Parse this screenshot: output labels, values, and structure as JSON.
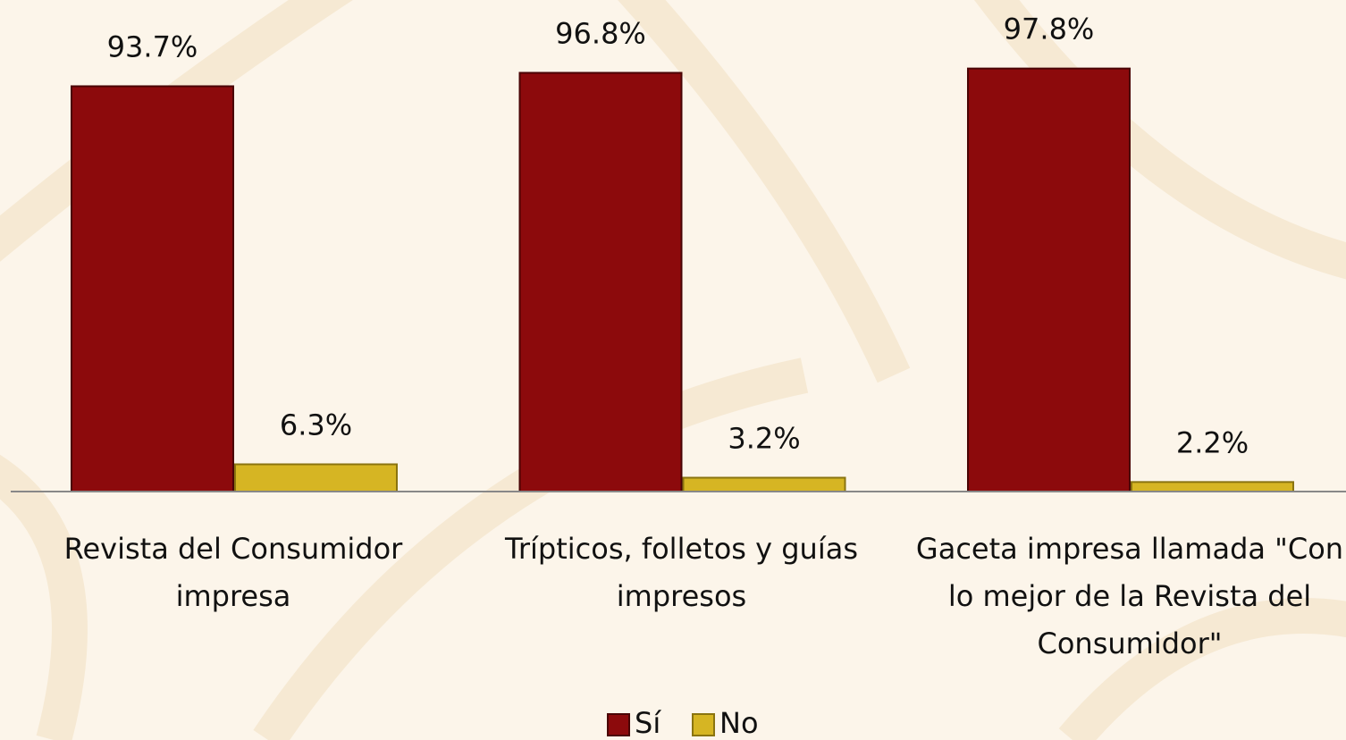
{
  "chart_data": {
    "type": "bar",
    "categories": [
      "Revista del Consumidor impresa",
      "Trípticos, folletos y guías impresos",
      "Gaceta impresa llamada \"Con lo mejor de la Revista del Consumidor\""
    ],
    "series": [
      {
        "name": "Sí",
        "color": "#8c0a0c",
        "values": [
          93.7,
          96.8,
          97.8
        ],
        "value_labels": [
          "93.7%",
          "96.8%",
          "97.8%"
        ]
      },
      {
        "name": "No",
        "color": "#d6b523",
        "values": [
          6.3,
          3.2,
          2.2
        ],
        "value_labels": [
          "6.3%",
          "3.2%",
          "2.2%"
        ]
      }
    ],
    "ylim": [
      0,
      100
    ]
  }
}
